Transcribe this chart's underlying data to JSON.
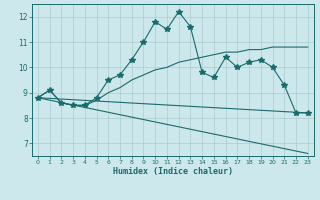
{
  "xlabel": "Humidex (Indice chaleur)",
  "background_color": "#cce8ed",
  "grid_color": "#aacccc",
  "line_color": "#1a6b6b",
  "xlim": [
    -0.5,
    23.5
  ],
  "ylim": [
    6.5,
    12.5
  ],
  "xticks": [
    0,
    1,
    2,
    3,
    4,
    5,
    6,
    7,
    8,
    9,
    10,
    11,
    12,
    13,
    14,
    15,
    16,
    17,
    18,
    19,
    20,
    21,
    22,
    23
  ],
  "yticks": [
    7,
    8,
    9,
    10,
    11,
    12
  ],
  "series": [
    {
      "x": [
        0,
        1,
        2,
        3,
        4,
        5,
        6,
        7,
        8,
        9,
        10,
        11,
        12,
        13,
        14,
        15,
        16,
        17,
        18,
        19,
        20,
        21,
        22,
        23
      ],
      "y": [
        8.8,
        9.1,
        8.6,
        8.5,
        8.5,
        8.8,
        9.5,
        9.7,
        10.3,
        11.0,
        11.8,
        11.5,
        12.2,
        11.6,
        9.8,
        9.6,
        10.4,
        10.0,
        10.2,
        10.3,
        10.0,
        9.3,
        8.2,
        8.2
      ],
      "marker": true
    },
    {
      "x": [
        0,
        1,
        2,
        3,
        4,
        5,
        6,
        7,
        8,
        9,
        10,
        11,
        12,
        13,
        14,
        15,
        16,
        17,
        18,
        19,
        20,
        21,
        22,
        23
      ],
      "y": [
        8.8,
        9.1,
        8.6,
        8.5,
        8.5,
        8.7,
        9.0,
        9.2,
        9.5,
        9.7,
        9.9,
        10.0,
        10.2,
        10.3,
        10.4,
        10.5,
        10.6,
        10.6,
        10.7,
        10.7,
        10.8,
        10.8,
        10.8,
        10.8
      ],
      "marker": false
    },
    {
      "x": [
        0,
        23
      ],
      "y": [
        8.8,
        8.2
      ],
      "marker": false
    },
    {
      "x": [
        0,
        23
      ],
      "y": [
        8.8,
        6.6
      ],
      "marker": false
    }
  ]
}
